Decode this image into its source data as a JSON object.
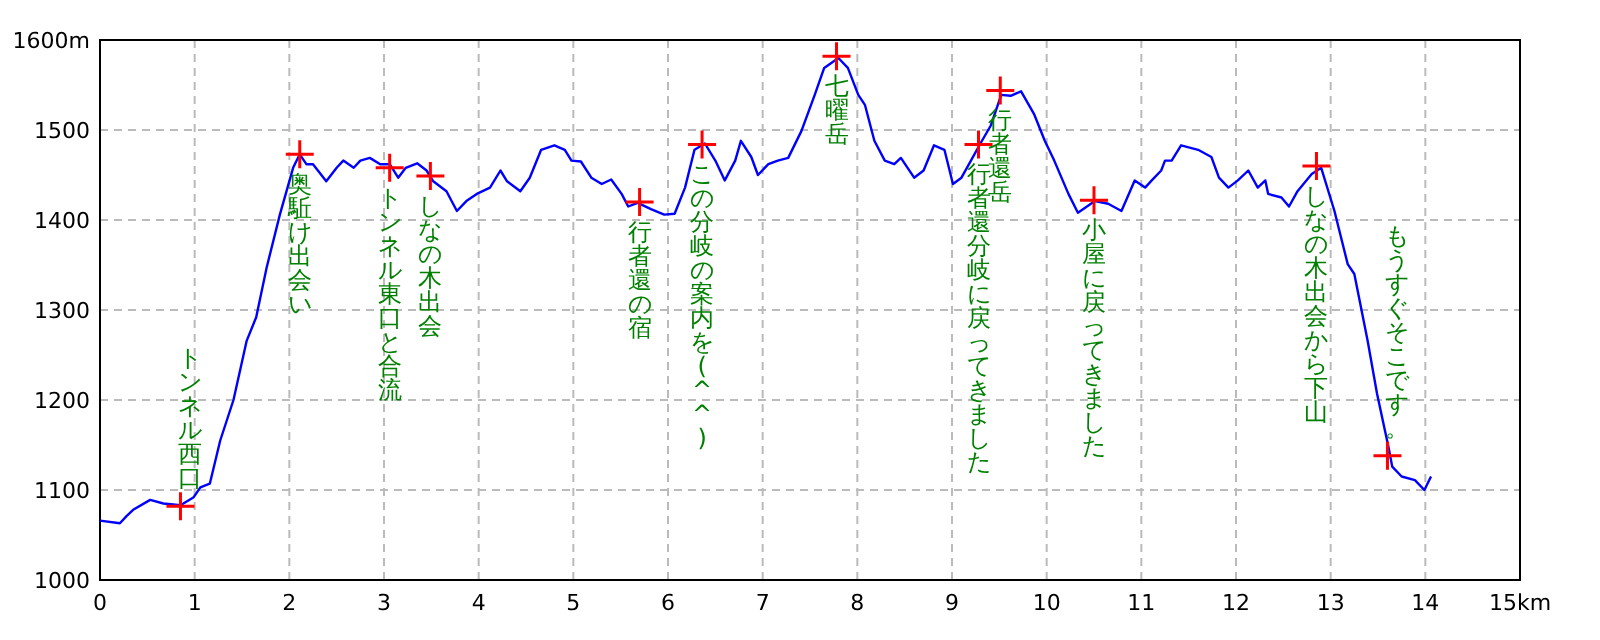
{
  "chart_data": {
    "type": "line",
    "xlim": [
      0,
      15
    ],
    "ylim": [
      1000,
      1600
    ],
    "xticks": [
      0,
      1,
      2,
      3,
      4,
      5,
      6,
      7,
      8,
      9,
      10,
      11,
      12,
      13,
      14,
      {
        "value": 15,
        "label": "15km"
      }
    ],
    "yticks": [
      1000,
      1100,
      1200,
      1300,
      1400,
      1500,
      {
        "value": 1600,
        "label": "1600m"
      }
    ],
    "grid": true,
    "series": [
      {
        "type": "line",
        "color": "#0000ff",
        "marker": "none",
        "x": [
          0,
          0.21,
          0.28,
          0.35,
          0.53,
          0.67,
          0.85,
          0.99,
          1.06,
          1.16,
          1.27,
          1.41,
          1.55,
          1.65,
          1.76,
          1.9,
          2.04,
          2.11,
          2.18,
          2.25,
          2.39,
          2.5,
          2.57,
          2.68,
          2.75,
          2.85,
          2.96,
          3.06,
          3.15,
          3.23,
          3.35,
          3.45,
          3.52,
          3.66,
          3.77,
          3.87,
          3.98,
          4.12,
          4.23,
          4.3,
          4.44,
          4.54,
          4.66,
          4.8,
          4.91,
          4.98,
          5.08,
          5.19,
          5.3,
          5.4,
          5.51,
          5.58,
          5.68,
          5.82,
          5.96,
          6.07,
          6.18,
          6.28,
          6.39,
          6.5,
          6.6,
          6.71,
          6.77,
          6.88,
          6.95,
          7.06,
          7.16,
          7.27,
          7.41,
          7.55,
          7.65,
          7.8,
          7.9,
          8.01,
          8.08,
          8.18,
          8.29,
          8.39,
          8.46,
          8.6,
          8.7,
          8.81,
          8.92,
          9.01,
          9.1,
          9.2,
          9.3,
          9.41,
          9.52,
          9.62,
          9.73,
          9.87,
          9.98,
          10.08,
          10.23,
          10.33,
          10.51,
          10.65,
          10.79,
          10.93,
          11.04,
          11.11,
          11.21,
          11.25,
          11.32,
          11.42,
          11.6,
          11.74,
          11.82,
          11.92,
          12.02,
          12.13,
          12.23,
          12.31,
          12.34,
          12.48,
          12.56,
          12.65,
          12.8,
          12.9,
          13.04,
          13.18,
          13.25,
          13.39,
          13.49,
          13.61,
          13.65,
          13.75,
          13.89,
          13.99,
          14.06
        ],
        "values": [
          1066,
          1063,
          1071,
          1078,
          1089,
          1085,
          1083,
          1092,
          1103,
          1107,
          1155,
          1200,
          1266,
          1292,
          1347,
          1406,
          1458,
          1473,
          1462,
          1462,
          1443,
          1458,
          1466,
          1458,
          1466,
          1469,
          1462,
          1462,
          1447,
          1458,
          1463,
          1455,
          1443,
          1432,
          1410,
          1421,
          1429,
          1436,
          1455,
          1443,
          1432,
          1447,
          1478,
          1483,
          1478,
          1466,
          1465,
          1447,
          1440,
          1445,
          1429,
          1415,
          1419,
          1412,
          1406,
          1407,
          1436,
          1478,
          1485,
          1466,
          1444,
          1466,
          1488,
          1470,
          1450,
          1462,
          1466,
          1469,
          1499,
          1539,
          1569,
          1580,
          1569,
          1539,
          1528,
          1488,
          1466,
          1462,
          1469,
          1447,
          1455,
          1483,
          1478,
          1440,
          1447,
          1466,
          1485,
          1505,
          1539,
          1538,
          1543,
          1517,
          1488,
          1466,
          1429,
          1408,
          1421,
          1418,
          1410,
          1444,
          1436,
          1444,
          1455,
          1466,
          1466,
          1483,
          1478,
          1470,
          1447,
          1436,
          1444,
          1455,
          1436,
          1444,
          1429,
          1425,
          1415,
          1432,
          1451,
          1458,
          1410,
          1351,
          1340,
          1266,
          1207,
          1148,
          1126,
          1115,
          1111,
          1100,
          1115
        ]
      },
      {
        "type": "scatter",
        "color": "#ff0000",
        "marker": "cross",
        "x": [
          0.85,
          2.11,
          3.06,
          3.49,
          5.7,
          6.36,
          7.78,
          9.28,
          9.51,
          10.5,
          12.85,
          13.6
        ],
        "values": [
          1082,
          1473,
          1458,
          1449,
          1420,
          1484,
          1582,
          1484,
          1544,
          1422,
          1460,
          1138
        ]
      }
    ],
    "annotations": [
      "トンネル西口",
      "奥駈け出会い",
      "トンネル東口と合流",
      "しなの木出会",
      "行者還の宿",
      "この分岐の案内を(^^)",
      "七曜岳",
      "行者還分岐に戻ってきました",
      "行者還岳",
      "小屋に戻ってきました",
      "しなの木出会から下山",
      "もうすぐそこです。"
    ]
  }
}
